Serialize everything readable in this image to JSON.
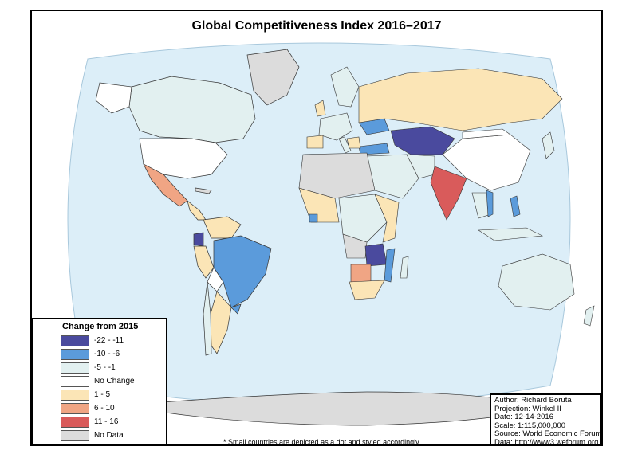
{
  "title": "Global Competitiveness Index 2016–2017",
  "legend": {
    "title": "Change from 2015",
    "items": [
      {
        "label": "-22 - -11",
        "color": "#4a4a9e"
      },
      {
        "label": "-10 - -6",
        "color": "#5b9bdb"
      },
      {
        "label": "-5 - -1",
        "color": "#e2f0f0"
      },
      {
        "label": "No Change",
        "color": "#ffffff"
      },
      {
        "label": "1 - 5",
        "color": "#fbe5b6"
      },
      {
        "label": "6 - 10",
        "color": "#f0a584"
      },
      {
        "label": "11 - 16",
        "color": "#d95b5b"
      },
      {
        "label": "No Data",
        "color": "#dcdcdc"
      }
    ]
  },
  "credits": {
    "author": "Author: Richard Boruta",
    "projection": "Projection: Winkel II",
    "date": "Date: 12-14-2016",
    "scale": "Scale: 1:115,000,000",
    "source": "Source: World Economic Forum",
    "data": "Data: http://www3.weforum.org"
  },
  "footnote": "* Small countries are depicted as a dot and styled accordingly.",
  "colors": {
    "ocean": "#dceef8",
    "outline": "#333333"
  }
}
